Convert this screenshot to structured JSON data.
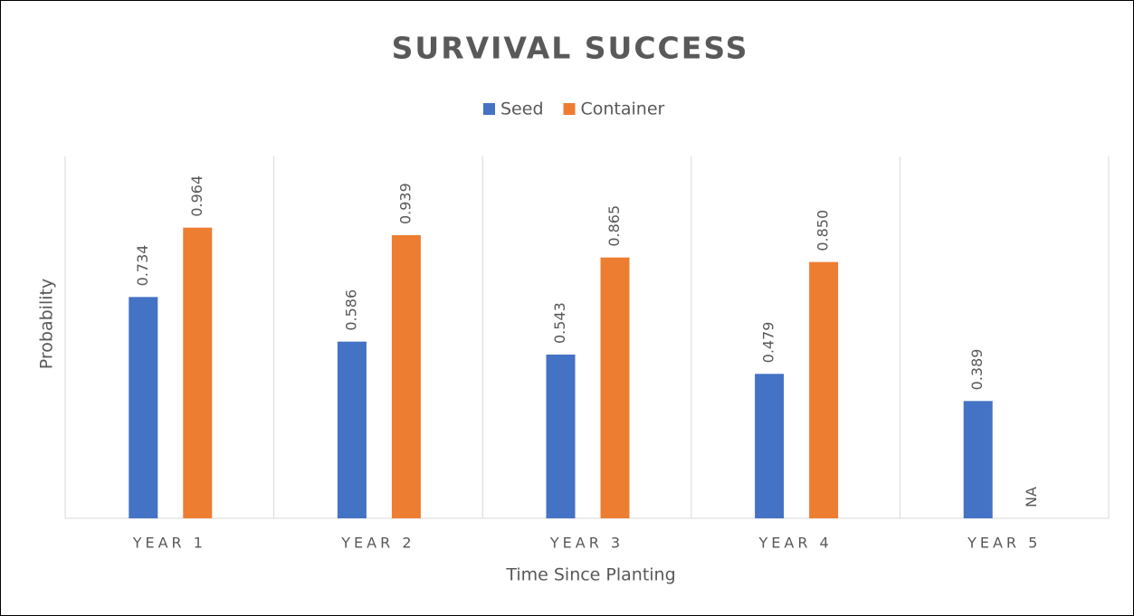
{
  "chart_data": {
    "type": "bar",
    "title": "SURVIVAL SUCCESS",
    "categories": [
      "YEAR 1",
      "YEAR 2",
      "YEAR 3",
      "YEAR 4",
      "YEAR 5"
    ],
    "series": [
      {
        "name": "Seed",
        "color": "#4472c4",
        "values": [
          0.734,
          0.586,
          0.543,
          0.479,
          0.389
        ],
        "value_labels": [
          "0.734",
          "0.586",
          "0.543",
          "0.479",
          "0.389"
        ]
      },
      {
        "name": "Container",
        "color": "#ed7d31",
        "values": [
          0.964,
          0.939,
          0.865,
          0.85,
          null
        ],
        "value_labels": [
          "0.964",
          "0.939",
          "0.865",
          "0.850",
          "NA"
        ]
      }
    ],
    "ylim": [
      0,
      1.2
    ],
    "x_label": "Time Since Planting",
    "y_label": "Probability",
    "legend": "top"
  }
}
